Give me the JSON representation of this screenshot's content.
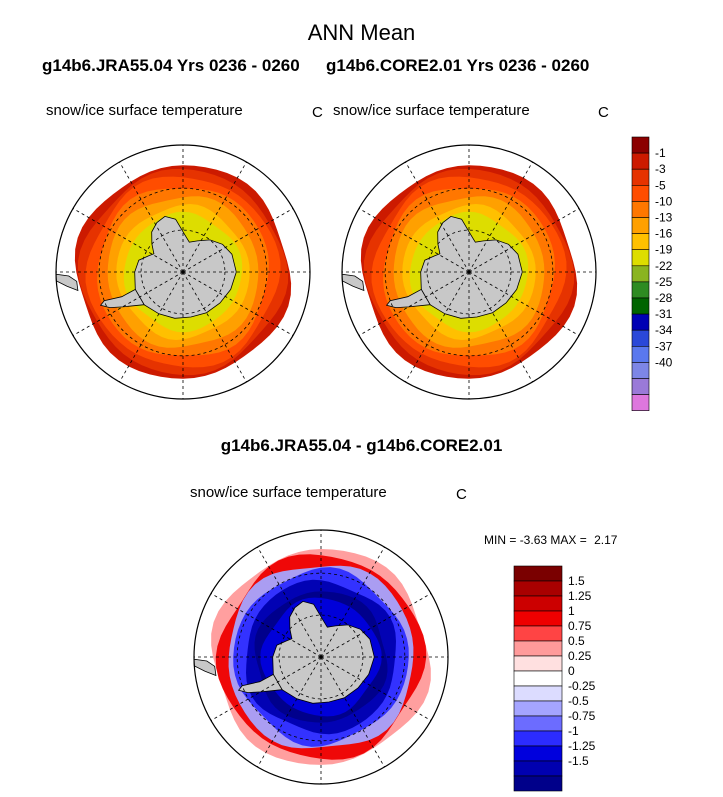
{
  "figure": {
    "title": "ANN Mean",
    "case_left": "g14b6.JRA55.04  Yrs 0236 - 0260",
    "case_right": "g14b6.CORE2.01  Yrs 0236 - 0260",
    "diff_title": "g14b6.JRA55.04 - g14b6.CORE2.01",
    "min_label": "MIN =",
    "min_value": "-3.63",
    "max_label": "MAX =",
    "max_value": "2.17"
  },
  "panels": [
    {
      "variable": "snow/ice surface temperature",
      "units": "C"
    },
    {
      "variable": "snow/ice surface temperature",
      "units": "C"
    },
    {
      "variable": "snow/ice surface temperature",
      "units": "C"
    }
  ],
  "chart_data": [
    {
      "type": "heatmap",
      "projection": "south-polar-stereographic",
      "title": "snow/ice surface temperature",
      "units": "C",
      "colorbar_levels": [
        -1,
        -3,
        -5,
        -10,
        -13,
        -16,
        -19,
        -22,
        -25,
        -28,
        -31,
        -34,
        -37,
        -40
      ],
      "colorbar_colors": [
        "#8b0000",
        "#cc1a00",
        "#e63300",
        "#ff4d00",
        "#ff7700",
        "#ffa000",
        "#ffc000",
        "#dddd00",
        "#8ab420",
        "#2e8b22",
        "#006400",
        "#0000b4",
        "#2a48d8",
        "#5a78ee",
        "#7d86e6",
        "#9a7ad8",
        "#dd77dd"
      ],
      "field_summary": {
        "ice_edge_range": [
          -1,
          -5
        ],
        "interior_near_continent": [
          -13,
          -19
        ]
      }
    },
    {
      "type": "heatmap",
      "projection": "south-polar-stereographic",
      "title": "snow/ice surface temperature",
      "units": "C",
      "colorbar_levels": [
        -1,
        -3,
        -5,
        -10,
        -13,
        -16,
        -19,
        -22,
        -25,
        -28,
        -31,
        -34,
        -37,
        -40
      ],
      "colorbar_colors": [
        "#8b0000",
        "#cc1a00",
        "#e63300",
        "#ff4d00",
        "#ff7700",
        "#ffa000",
        "#ffc000",
        "#dddd00",
        "#8ab420",
        "#2e8b22",
        "#006400",
        "#0000b4",
        "#2a48d8",
        "#5a78ee",
        "#7d86e6",
        "#9a7ad8",
        "#dd77dd"
      ],
      "field_summary": {
        "ice_edge_range": [
          -1,
          -5
        ],
        "interior_near_continent": [
          -13,
          -19
        ]
      }
    },
    {
      "type": "heatmap",
      "projection": "south-polar-stereographic",
      "title": "snow/ice surface temperature",
      "units": "C",
      "min": -3.63,
      "max": 2.17,
      "colorbar_levels": [
        1.5,
        1.25,
        1,
        0.75,
        0.5,
        0.25,
        0,
        -0.25,
        -0.5,
        -0.75,
        -1,
        -1.25,
        -1.5
      ],
      "colorbar_colors": [
        "#7a0000",
        "#a80000",
        "#cc0000",
        "#ee0000",
        "#ff4444",
        "#ff9a9a",
        "#ffe0e0",
        "#ffffff",
        "#dcdcff",
        "#a5a5ff",
        "#6c6cff",
        "#2c2cff",
        "#0000dd",
        "#0000b0",
        "#00008a"
      ],
      "field_summary": {
        "positive_near_ice_edge": true,
        "negative_inner_pack": true
      }
    }
  ],
  "colors": {
    "land": "#c8c8c8",
    "grid": "#000000"
  }
}
